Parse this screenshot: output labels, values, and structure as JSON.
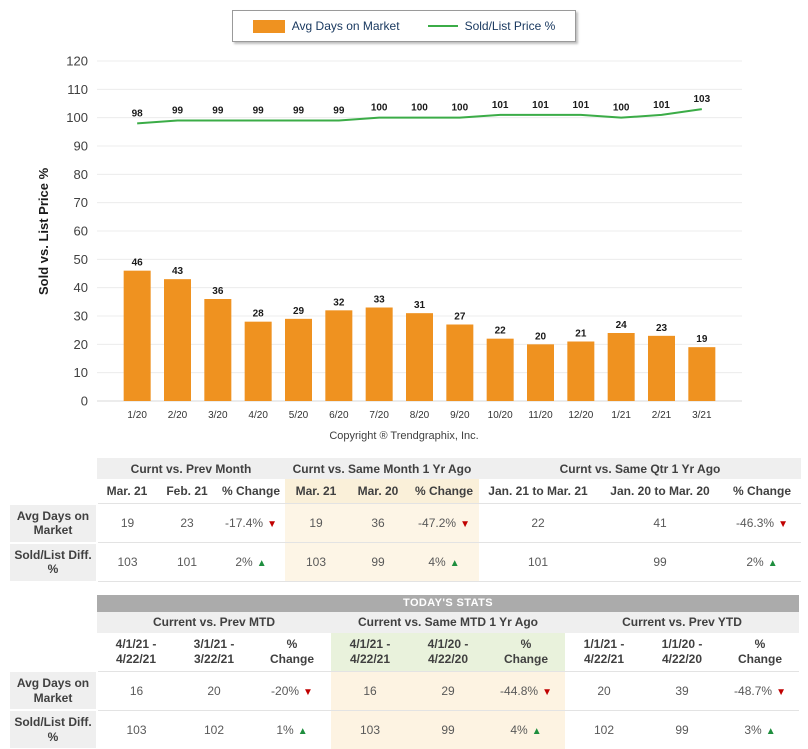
{
  "legend": {
    "bar_label": "Avg Days on Market",
    "line_label": "Sold/List Price %"
  },
  "copyright": "Copyright ® Trendgraphix, Inc.",
  "chart_data": {
    "type": "bar",
    "categories": [
      "1/20",
      "2/20",
      "3/20",
      "4/20",
      "5/20",
      "6/20",
      "7/20",
      "8/20",
      "9/20",
      "10/20",
      "11/20",
      "12/20",
      "1/21",
      "2/21",
      "3/21"
    ],
    "series": [
      {
        "name": "Avg Days on Market",
        "type": "bar",
        "color": "#EF9220",
        "values": [
          46,
          43,
          36,
          28,
          29,
          32,
          33,
          31,
          27,
          22,
          20,
          21,
          24,
          23,
          19
        ]
      },
      {
        "name": "Sold/List Price %",
        "type": "line",
        "color": "#3BAC47",
        "values": [
          98,
          99,
          99,
          99,
          99,
          99,
          100,
          100,
          100,
          101,
          101,
          101,
          100,
          101,
          103
        ]
      }
    ],
    "title": "",
    "xlabel": "",
    "ylabel": "Sold vs.  List Price %",
    "ylim": [
      0,
      120
    ],
    "ytick_step": 10,
    "grid": true,
    "legend_position": "top"
  },
  "table1": {
    "groups": [
      {
        "title": "Curnt vs. Prev Month",
        "highlight": false,
        "columns": [
          "Mar. 21",
          "Feb. 21",
          "% Change"
        ]
      },
      {
        "title": "Curnt vs. Same Month 1 Yr Ago",
        "highlight": true,
        "columns": [
          "Mar. 21",
          "Mar. 20",
          "% Change"
        ]
      },
      {
        "title": "Curnt vs. Same Qtr 1 Yr Ago",
        "highlight": false,
        "columns": [
          "Jan. 21 to Mar. 21",
          "Jan. 20 to Mar. 20",
          "% Change"
        ]
      }
    ],
    "rows": [
      {
        "label": "Avg Days on Market",
        "cells": [
          {
            "text": "19"
          },
          {
            "text": "23"
          },
          {
            "text": "-17.4%",
            "dir": "down"
          },
          {
            "text": "19"
          },
          {
            "text": "36"
          },
          {
            "text": "-47.2%",
            "dir": "down"
          },
          {
            "text": "22"
          },
          {
            "text": "41"
          },
          {
            "text": "-46.3%",
            "dir": "down"
          }
        ]
      },
      {
        "label": "Sold/List Diff. %",
        "cells": [
          {
            "text": "103"
          },
          {
            "text": "101"
          },
          {
            "text": "2%",
            "dir": "up"
          },
          {
            "text": "103"
          },
          {
            "text": "99"
          },
          {
            "text": "4%",
            "dir": "up"
          },
          {
            "text": "101"
          },
          {
            "text": "99"
          },
          {
            "text": "2%",
            "dir": "up"
          }
        ]
      }
    ]
  },
  "table2": {
    "title": "TODAY'S STATS",
    "groups": [
      {
        "title": "Current vs. Prev MTD",
        "highlight": false,
        "columns": [
          "4/1/21 -\n4/22/21",
          "3/1/21 -\n3/22/21",
          "%\nChange"
        ]
      },
      {
        "title": "Current vs. Same MTD 1 Yr Ago",
        "highlight": true,
        "columns": [
          "4/1/21 -\n4/22/21",
          "4/1/20 -\n4/22/20",
          "%\nChange"
        ]
      },
      {
        "title": "Current vs. Prev YTD",
        "highlight": false,
        "columns": [
          "1/1/21 -\n4/22/21",
          "1/1/20 -\n4/22/20",
          "%\nChange"
        ]
      }
    ],
    "rows": [
      {
        "label": "Avg Days on Market",
        "cells": [
          {
            "text": "16"
          },
          {
            "text": "20"
          },
          {
            "text": "-20%",
            "dir": "down"
          },
          {
            "text": "16"
          },
          {
            "text": "29"
          },
          {
            "text": "-44.8%",
            "dir": "down"
          },
          {
            "text": "20"
          },
          {
            "text": "39"
          },
          {
            "text": "-48.7%",
            "dir": "down"
          }
        ]
      },
      {
        "label": "Sold/List Diff. %",
        "cells": [
          {
            "text": "103"
          },
          {
            "text": "102"
          },
          {
            "text": "1%",
            "dir": "up"
          },
          {
            "text": "103"
          },
          {
            "text": "99"
          },
          {
            "text": "4%",
            "dir": "up"
          },
          {
            "text": "102"
          },
          {
            "text": "99"
          },
          {
            "text": "3%",
            "dir": "up"
          }
        ]
      }
    ]
  },
  "colors": {
    "bar": "#EF9220",
    "line": "#3BAC47",
    "arrow_up": "#1E8E3E",
    "arrow_down": "#C00000",
    "header_gray": "#EFEFEF",
    "stats_bar_gray": "#ABABAB",
    "highlight_cream": "#FDF5E6",
    "highlight_green": "#E9F2DC",
    "grid_line": "#ECECEC"
  }
}
